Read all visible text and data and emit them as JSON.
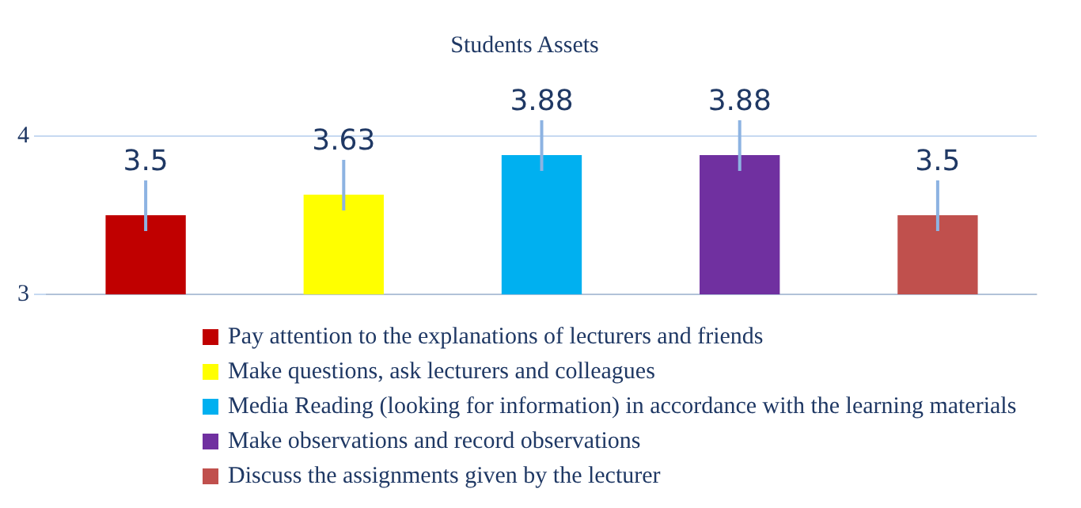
{
  "chart_data": {
    "type": "bar",
    "title": "Students Assets",
    "categories": [
      null,
      null,
      null,
      null,
      null
    ],
    "series": [
      {
        "name": "Pay attention to the explanations of lecturers and friends",
        "color": "#c00000",
        "values": [
          3.5,
          null,
          null,
          null,
          null
        ]
      },
      {
        "name": "Make questions, ask lecturers and colleagues",
        "color": "#ffff00",
        "values": [
          null,
          3.63,
          null,
          null,
          null
        ]
      },
      {
        "name": "Media Reading (looking for information) in accordance with the learning materials",
        "color": "#00b0f0",
        "values": [
          null,
          null,
          3.88,
          null,
          null
        ]
      },
      {
        "name": "Make observations and record observations",
        "color": "#7030a0",
        "values": [
          null,
          null,
          null,
          3.88,
          null
        ]
      },
      {
        "name": "Discuss the assignments given by the lecturer",
        "color": "#c0504d",
        "values": [
          null,
          null,
          null,
          null,
          3.5
        ]
      }
    ],
    "ylim": [
      3,
      4
    ],
    "yticks": [
      3,
      4
    ],
    "grid": "y",
    "data_labels": true,
    "legend": "bottom",
    "tick_labels": "y"
  }
}
